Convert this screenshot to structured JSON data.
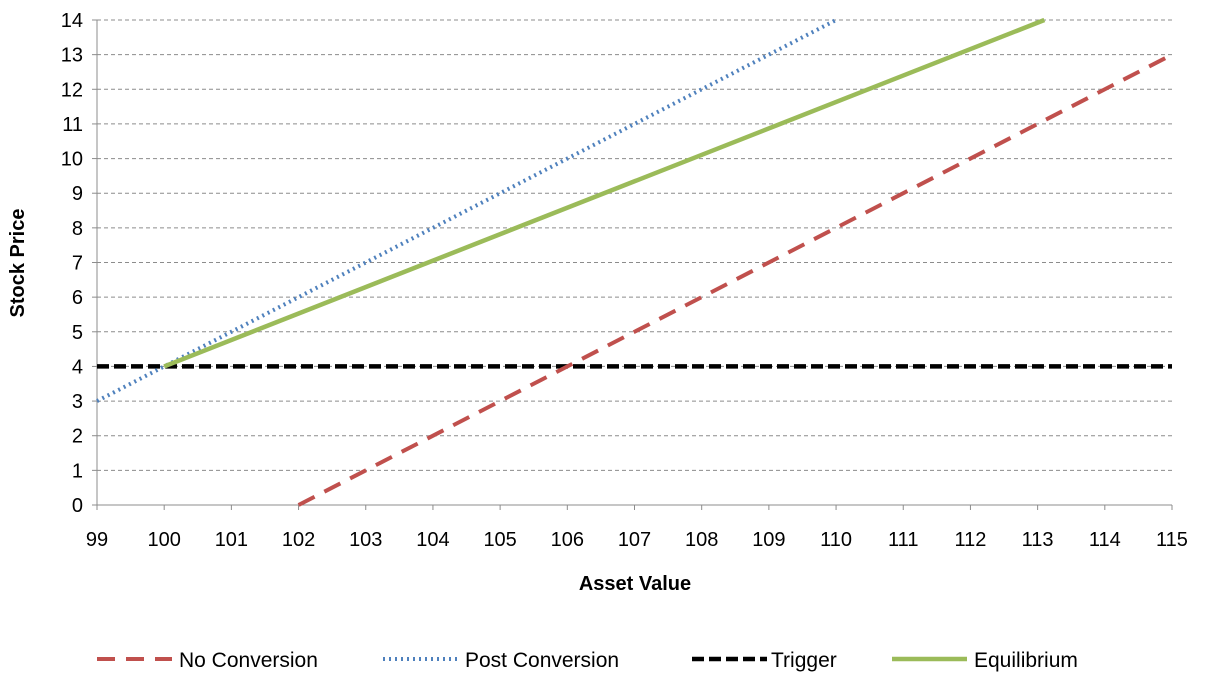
{
  "chart_data": {
    "type": "line",
    "xlabel": "Asset Value",
    "ylabel": "Stock Price",
    "xlim": [
      99,
      115
    ],
    "ylim": [
      0,
      14
    ],
    "x_ticks": [
      "99",
      "100",
      "101",
      "102",
      "103",
      "104",
      "105",
      "106",
      "107",
      "108",
      "109",
      "110",
      "111",
      "112",
      "113",
      "114",
      "115"
    ],
    "y_ticks": [
      "0",
      "1",
      "2",
      "3",
      "4",
      "5",
      "6",
      "7",
      "8",
      "9",
      "10",
      "11",
      "12",
      "13",
      "14"
    ],
    "grid": "horizontal dashed",
    "legend_position": "bottom",
    "series": [
      {
        "name": "No Conversion",
        "style": "dashed",
        "color": "#C0504D",
        "x": [
          102,
          115
        ],
        "y": [
          0,
          13
        ]
      },
      {
        "name": "Post Conversion",
        "style": "dotted",
        "color": "#4F81BD",
        "x": [
          99,
          110
        ],
        "y": [
          3,
          14
        ]
      },
      {
        "name": "Trigger",
        "style": "dashed-thick",
        "color": "#000000",
        "x": [
          99,
          115
        ],
        "y": [
          4,
          4
        ]
      },
      {
        "name": "Equilibrium",
        "style": "solid",
        "color": "#9BBB59",
        "x": [
          100,
          113.1
        ],
        "y": [
          4,
          14
        ]
      }
    ]
  }
}
